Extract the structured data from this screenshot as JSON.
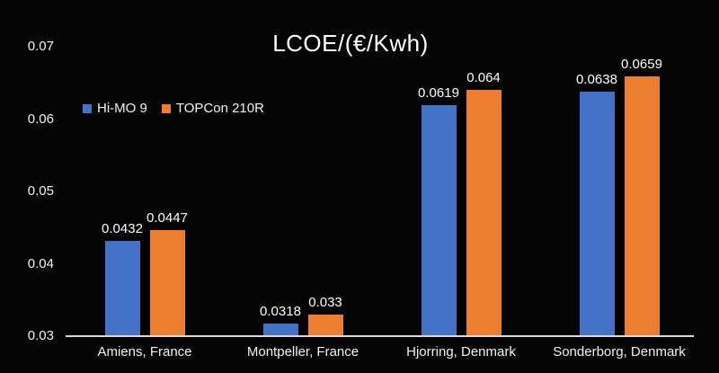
{
  "page": {
    "background_color": "#030303",
    "text_color": "#f2f2f2"
  },
  "chart_data": {
    "type": "bar",
    "title": "LCOE/(€/Kwh)",
    "categories": [
      "Amiens, France",
      "Montpeller, France",
      "Hjorring, Denmark",
      "Sonderborg, Denmark"
    ],
    "series": [
      {
        "name": "Hi-MO 9",
        "color": "#4472C4",
        "values": [
          0.0432,
          0.0318,
          0.0619,
          0.0638
        ],
        "labels": [
          "0.0432",
          "0.0318",
          "0.0619",
          "0.0638"
        ]
      },
      {
        "name": "TOPCon 210R",
        "color": "#ED7D31",
        "values": [
          0.0447,
          0.033,
          0.064,
          0.0659
        ],
        "labels": [
          "0.0447",
          "0.033",
          "0.064",
          "0.0659"
        ]
      }
    ],
    "y_axis": {
      "min": 0.03,
      "max": 0.07,
      "tick_labels": [
        "0.07",
        "0.06",
        "0.05",
        "0.04",
        "0.03"
      ],
      "tick_values": [
        0.07,
        0.06,
        0.05,
        0.04,
        0.03
      ]
    },
    "xlabel": "",
    "ylabel": "",
    "grid": false,
    "data_labels": true,
    "legend_position": "inside-top-left",
    "axis_line_color": "#d9d9d9"
  }
}
